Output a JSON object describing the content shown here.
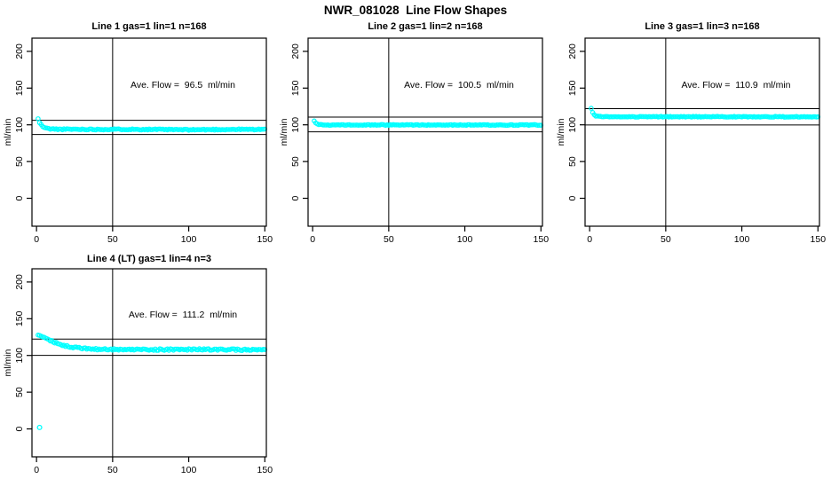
{
  "page_title": "NWR_081028  Line Flow Shapes",
  "axes": {
    "x_ticks": [
      0,
      50,
      100,
      150
    ],
    "y_ticks": [
      0,
      50,
      100,
      150,
      200
    ],
    "y_axis_label": "ml/min",
    "x_display_range": [
      -3,
      151
    ],
    "y_display_range": [
      -38,
      218
    ],
    "grid": false,
    "point_color": "#00FFFF",
    "axis_color": "#000000",
    "background": "#FFFFFF"
  },
  "chart_data": [
    {
      "type": "scatter",
      "title": "Line 1 gas=1 lin=1 n=168",
      "annotation": "Ave. Flow =  96.5  ml/min",
      "ave_flow": 96.5,
      "n": 168,
      "ylabel": "ml/min",
      "xlabel": "",
      "hlines": [
        106.15,
        86.85
      ],
      "vline_x": 50,
      "x_range": [
        1,
        150
      ],
      "noise": 0.7,
      "seed": 11,
      "anchors": [
        [
          1,
          108
        ],
        [
          2,
          103
        ],
        [
          3,
          100
        ],
        [
          4,
          98
        ],
        [
          5,
          96.5
        ],
        [
          6,
          95.5
        ],
        [
          8,
          94.8
        ],
        [
          10,
          94.3
        ],
        [
          15,
          94
        ],
        [
          25,
          94
        ],
        [
          40,
          93.8
        ],
        [
          60,
          93.9
        ],
        [
          80,
          93.7
        ],
        [
          100,
          93.3
        ],
        [
          110,
          93.5
        ],
        [
          130,
          93.8
        ],
        [
          150,
          93.8
        ]
      ],
      "outliers": []
    },
    {
      "type": "scatter",
      "title": "Line 2 gas=1 lin=2 n=168",
      "annotation": "Ave. Flow =  100.5  ml/min",
      "ave_flow": 100.5,
      "n": 168,
      "ylabel": "ml/min",
      "xlabel": "",
      "hlines": [
        110.55,
        90.45
      ],
      "vline_x": 50,
      "x_range": [
        1,
        150
      ],
      "noise": 0.55,
      "seed": 22,
      "anchors": [
        [
          1,
          105.5
        ],
        [
          2,
          103
        ],
        [
          3,
          101.5
        ],
        [
          4,
          100.7
        ],
        [
          5,
          100.2
        ],
        [
          7,
          100
        ],
        [
          10,
          99.8
        ],
        [
          30,
          99.8
        ],
        [
          60,
          99.9
        ],
        [
          100,
          99.8
        ],
        [
          150,
          99.8
        ]
      ],
      "outliers": []
    },
    {
      "type": "scatter",
      "title": "Line 3 gas=1 lin=3 n=168",
      "annotation": "Ave. Flow =  110.9  ml/min",
      "ave_flow": 110.9,
      "n": 168,
      "ylabel": "ml/min",
      "xlabel": "",
      "hlines": [
        121.99,
        99.81
      ],
      "vline_x": 50,
      "x_range": [
        1,
        150
      ],
      "noise": 0.5,
      "seed": 33,
      "anchors": [
        [
          1,
          122
        ],
        [
          2,
          116.5
        ],
        [
          3,
          113.5
        ],
        [
          4,
          112.2
        ],
        [
          5,
          111.6
        ],
        [
          7,
          111.2
        ],
        [
          10,
          111
        ],
        [
          40,
          111
        ],
        [
          80,
          111
        ],
        [
          120,
          111
        ],
        [
          150,
          110.8
        ]
      ],
      "outliers": []
    },
    {
      "type": "scatter",
      "title": "Line 4 (LT) gas=1 lin=4 n=3",
      "annotation": "Ave. Flow =  111.2  ml/min",
      "ave_flow": 111.2,
      "n": 3,
      "ylabel": "ml/min",
      "xlabel": "",
      "hlines": [
        122.32,
        100.08
      ],
      "vline_x": 50,
      "x_range": [
        1,
        150
      ],
      "noise": 1.1,
      "seed": 44,
      "anchors": [
        [
          1,
          127.5
        ],
        [
          2,
          127
        ],
        [
          4,
          125.5
        ],
        [
          6,
          123.5
        ],
        [
          8,
          121.5
        ],
        [
          10,
          119.8
        ],
        [
          13,
          117
        ],
        [
          16,
          115
        ],
        [
          20,
          112.8
        ],
        [
          25,
          111
        ],
        [
          30,
          109.8
        ],
        [
          35,
          109
        ],
        [
          40,
          108.5
        ],
        [
          50,
          108.2
        ],
        [
          70,
          108
        ],
        [
          90,
          108
        ],
        [
          110,
          108.2
        ],
        [
          130,
          107.8
        ],
        [
          150,
          107.5
        ]
      ],
      "outliers": [
        [
          2,
          2
        ]
      ]
    }
  ]
}
